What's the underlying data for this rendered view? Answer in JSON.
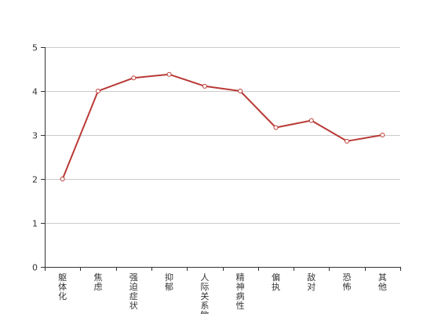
{
  "chart_data": {
    "type": "line",
    "title": "",
    "xlabel": "",
    "ylabel": "",
    "categories": [
      "躯体化",
      "焦虑",
      "强迫症状",
      "抑郁",
      "人际关系敏感",
      "精神病性",
      "偏执",
      "敌对",
      "恐怖",
      "其他"
    ],
    "series": [
      {
        "values": [
          2.0,
          4.0,
          4.3,
          4.38,
          4.11,
          4.0,
          3.17,
          3.33,
          2.86,
          3.0
        ]
      }
    ],
    "ylim": [
      0,
      5
    ],
    "yticks": [
      0,
      1,
      2,
      3,
      4,
      5
    ],
    "grid": true,
    "colors": {
      "line": "#b93a36",
      "grid": "#cccccc",
      "axis": "#333333",
      "point_fill": "#ffffff"
    }
  }
}
